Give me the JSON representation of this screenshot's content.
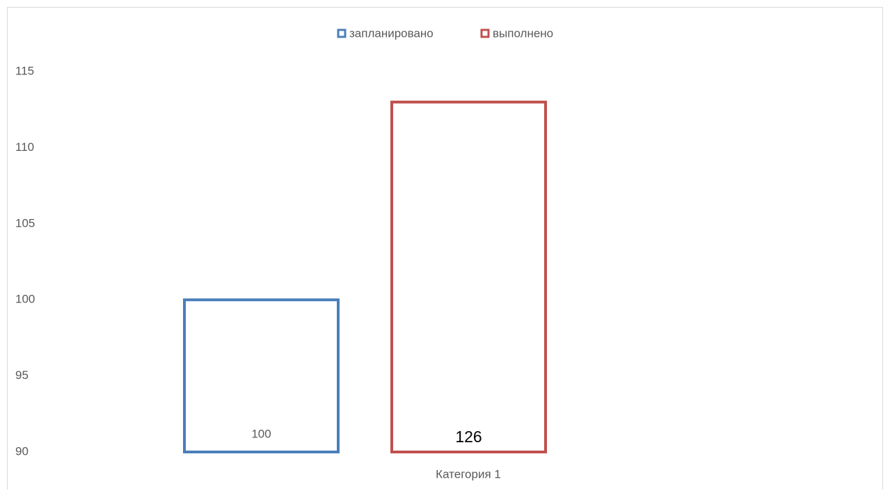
{
  "chart_data": {
    "type": "bar",
    "categories": [
      "Категория 1"
    ],
    "series": [
      {
        "name": "запланировано",
        "color": "#4a7ebb",
        "values": [
          100
        ]
      },
      {
        "name": "выполнено",
        "color": "#c0504d",
        "values": [
          113
        ]
      }
    ],
    "annotations": [
      "126"
    ],
    "ylim": [
      90,
      115
    ],
    "yticks": [
      90,
      95,
      100,
      105,
      110,
      115
    ],
    "grid": false,
    "legend": "top"
  }
}
